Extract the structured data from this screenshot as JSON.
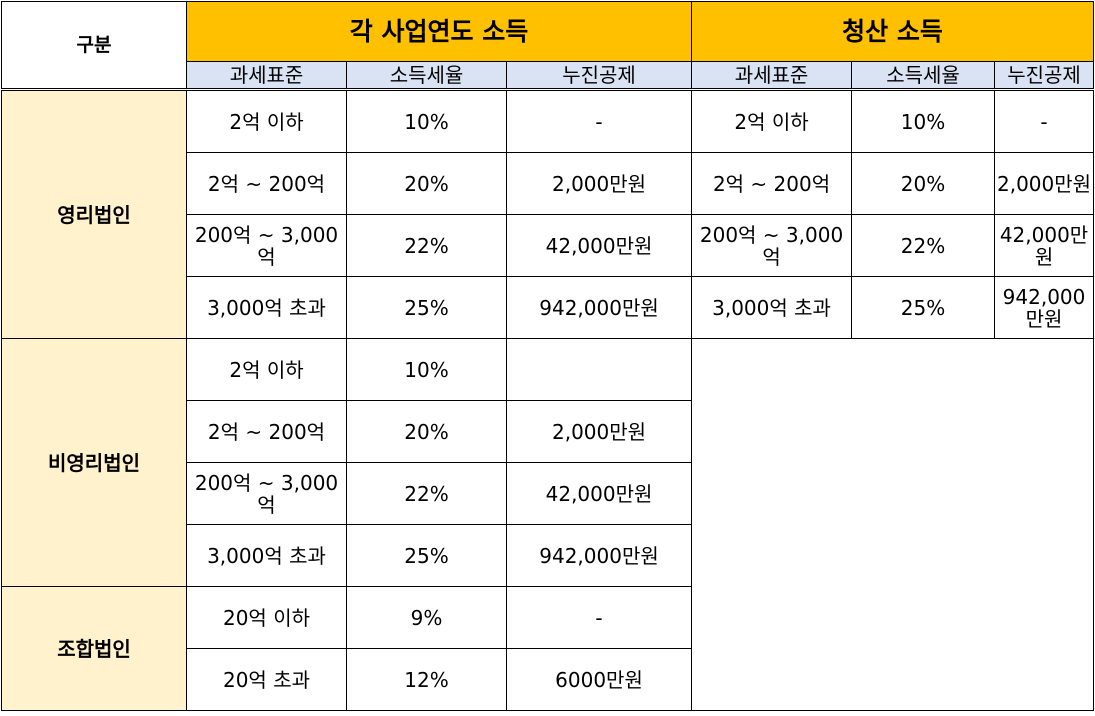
{
  "header": {
    "gubun": "구분",
    "group_a": "각 사업연도 소득",
    "group_b": "청산 소득",
    "cols_a": [
      "과세표준",
      "소득세율",
      "누진공제"
    ],
    "cols_b": [
      "과세표준",
      "소득세율",
      "누진공제"
    ]
  },
  "categories": {
    "profit": "영리법인",
    "nonprofit": "비영리법인",
    "union": "조합법인"
  },
  "profit_rows": [
    {
      "base": "2억 이하",
      "rate": "10%",
      "deduct": "-",
      "lbase": "2억 이하",
      "lrate": "10%",
      "ldeduct": "-"
    },
    {
      "base": "2억 ~ 200억",
      "rate": "20%",
      "deduct": "2,000만원",
      "lbase": "2억 ~ 200억",
      "lrate": "20%",
      "ldeduct": "2,000만원"
    },
    {
      "base": "200억 ~ 3,000억",
      "rate": "22%",
      "deduct": "42,000만원",
      "lbase": "200억 ~ 3,000억",
      "lrate": "22%",
      "ldeduct": "42,000만원"
    },
    {
      "base": "3,000억 초과",
      "rate": "25%",
      "deduct": "942,000만원",
      "lbase": "3,000억 초과",
      "lrate": "25%",
      "ldeduct": "942,000만원"
    }
  ],
  "nonprofit_rows": [
    {
      "base": "2억 이하",
      "rate": "10%",
      "deduct": ""
    },
    {
      "base": "2억 ~ 200억",
      "rate": "20%",
      "deduct": "2,000만원"
    },
    {
      "base": "200억 ~ 3,000억",
      "rate": "22%",
      "deduct": "42,000만원"
    },
    {
      "base": "3,000억 초과",
      "rate": "25%",
      "deduct": "942,000만원"
    }
  ],
  "union_rows": [
    {
      "base": "20억 이하",
      "rate": "9%",
      "deduct": "-"
    },
    {
      "base": "20억 초과",
      "rate": "12%",
      "deduct": "6000만원"
    }
  ]
}
